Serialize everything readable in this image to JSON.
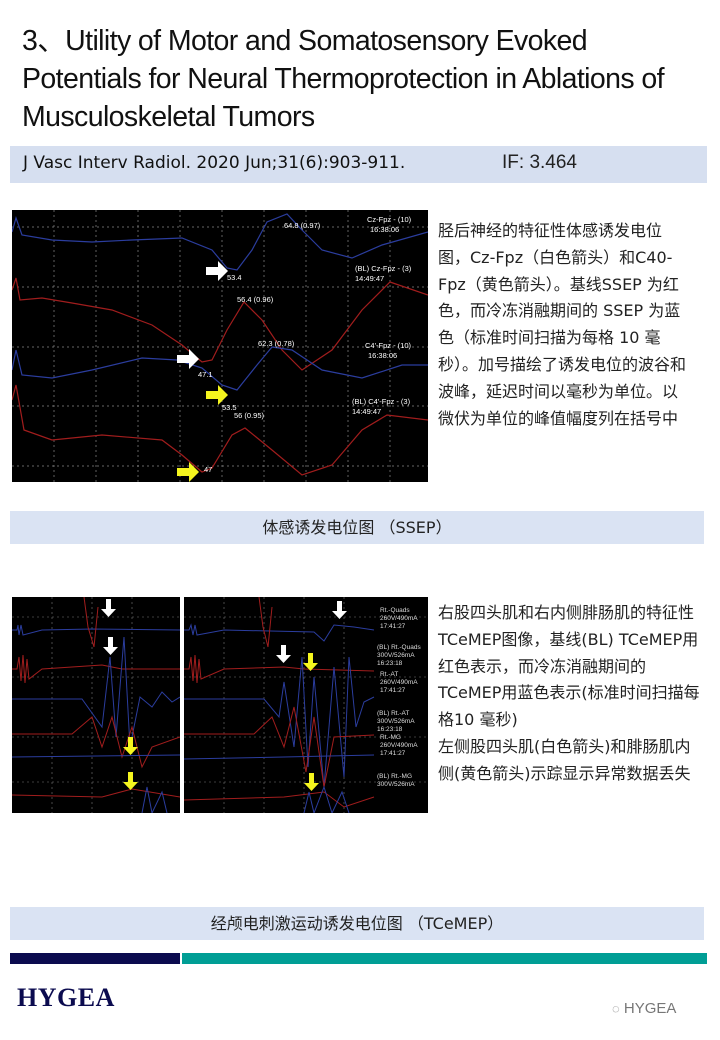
{
  "title": "3、Utility of Motor and Somatosensory Evoked Potentials for Neural Thermoprotection in Ablations of Musculoskeletal Tumors",
  "citation": "J Vasc Interv Radiol. 2020 Jun;31(6):903-911.",
  "impact_factor": "IF: 3.464",
  "ssep": {
    "labels": {
      "cz": "Cz-Fpz - (10)",
      "cz_time": "16:38:06",
      "blcz": "(BL) Cz-Fpz - (3)",
      "blcz_time": "14:49:47",
      "c4": "C4'-Fpz - (10)",
      "c4_time": "16:38:06",
      "blc4": "(BL) C4'-Fpz - (3)",
      "blc4_time": "14:49:47"
    },
    "markers": {
      "m1": "64.8 (0.97)",
      "m2": "53.4",
      "m3": "56.4 (0.96)",
      "m4": "62.3 (0.78)",
      "m5": "47.1",
      "m6": "53.5",
      "m7": "56 (0.95)",
      "m8": "47"
    },
    "description": "胫后神经的特征性体感诱发电位图，Cz-Fpz（白色箭头）和C40-Fpz（黄色箭头）。基线SSEP 为红色，而冷冻消融期间的 SSEP 为蓝色（标准时间扫描为每格 10 毫秒）。加号描绘了诱发电位的波谷和波峰，延迟时间以毫秒为单位。以微伏为单位的峰值幅度列在括号中",
    "caption": "体感诱发电位图 （SSEP）"
  },
  "tcemep": {
    "labels": {
      "q": "Rt.-Quads",
      "q_param": "260V/490mA",
      "q_time": "17:41:27",
      "blq": "(BL) Rt.-Quads",
      "blq_param": "300V/526mA",
      "blq_time": "16:23:18",
      "at": "Rt.-AT",
      "at_param": "260V/490mA",
      "at_time": "17:41:27",
      "blat": "(BL) Rt.-AT",
      "blat_param": "300V/526mA",
      "blat_time": "16:23:18",
      "mg": "Rt.-MG",
      "mg_param": "260V/490mA",
      "mg_time": "17:41:27",
      "blmg": "(BL) Rt.-MG",
      "blmg_param": "300V/526mA"
    },
    "description": "右股四头肌和右内侧腓肠肌的特征性TCeMEP图像，基线(BL) TCeMEP用红色表示，而冷冻消融期间的TCeMEP用蓝色表示(标准时间扫描每格10 毫秒)\n左侧股四头肌(白色箭头)和腓肠肌内侧(黄色箭头)示踪显示异常数据丢失",
    "caption": "经颅电刺激运动诱发电位图 （TCeMEP）"
  },
  "colors": {
    "baseline": "#a11d1d",
    "intraop": "#2b3d9e",
    "white_arrow": "#ffffff",
    "yellow_arrow": "#f5f51e",
    "navy": "#0b0b4f",
    "teal": "#009e95",
    "caption_bg": "#dae3f3"
  },
  "footer": {
    "logo": "HYGEA",
    "watermark": "HYGEA",
    "watermark_icon": "wechat-icon"
  }
}
